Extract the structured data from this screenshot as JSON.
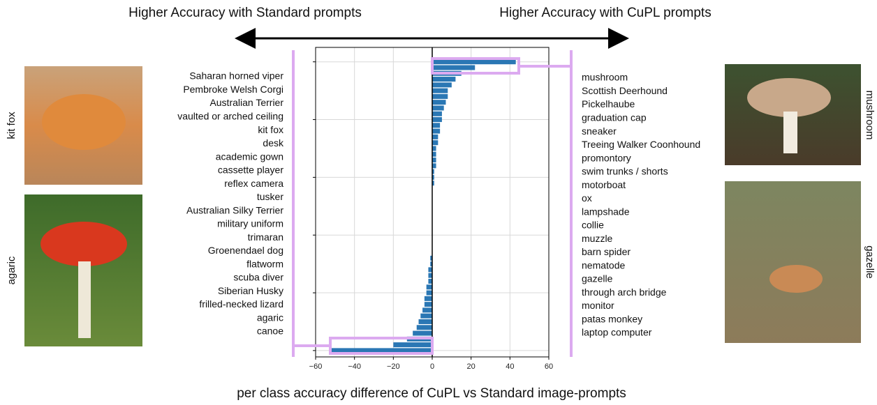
{
  "chart_data": {
    "type": "bar",
    "orientation": "horizontal",
    "title": "per class accuracy difference of CuPL vs Standard image-prompts",
    "left_header": "Higher Accuracy with Standard prompts",
    "right_header": "Higher Accuracy with CuPL prompts",
    "y": [
      0,
      20,
      40,
      60,
      80,
      100,
      120,
      140,
      160,
      180,
      200,
      220,
      240,
      260,
      280,
      300,
      320,
      340,
      360,
      380,
      400,
      420,
      440,
      460,
      480,
      500,
      520,
      540,
      560,
      580,
      600,
      620,
      640,
      660,
      680,
      700,
      720,
      740,
      760,
      780,
      800,
      820,
      840,
      860,
      880,
      900,
      920,
      940,
      960,
      980,
      1000
    ],
    "values": [
      43,
      22,
      15,
      12,
      10,
      8,
      8,
      7,
      6,
      5,
      5,
      4,
      4,
      3,
      3,
      2,
      2,
      2,
      2,
      1,
      1,
      1,
      0,
      0,
      0,
      0,
      0,
      0,
      0,
      0,
      0,
      0,
      0,
      0,
      -1,
      -1,
      -2,
      -2,
      -2,
      -3,
      -3,
      -4,
      -4,
      -5,
      -6,
      -7,
      -8,
      -10,
      -13,
      -20,
      -52
    ],
    "color": "#2a77b4",
    "xlim": [
      -60,
      60
    ],
    "xticks": [
      {
        "value": -60,
        "label": "−60"
      },
      {
        "value": -40,
        "label": "−40"
      },
      {
        "value": -20,
        "label": "−20"
      },
      0,
      20,
      40,
      60
    ],
    "ylim": [
      -50,
      1022
    ],
    "yticks": [
      0,
      200,
      400,
      600,
      800,
      1000
    ],
    "grid": true
  },
  "figure": {
    "left_classes": [
      "Saharan horned viper",
      "Pembroke Welsh Corgi",
      "Australian Terrier",
      "vaulted or arched ceiling",
      "kit fox",
      "desk",
      "academic gown",
      "cassette player",
      "reflex camera",
      "tusker",
      "Australian Silky Terrier",
      "military uniform",
      "trimaran",
      "Groenendael dog",
      "flatworm",
      "scuba diver",
      "Siberian Husky",
      "frilled-necked lizard",
      "agaric",
      "canoe"
    ],
    "right_classes": [
      "mushroom",
      "Scottish Deerhound",
      "Pickelhaube",
      "graduation cap",
      "sneaker",
      "Treeing Walker Coonhound",
      "promontory",
      "swim trunks / shorts",
      "motorboat",
      "ox",
      "lampshade",
      "collie",
      "muzzle",
      "barn spider",
      "nematode",
      "gazelle",
      "through arch bridge",
      "monitor",
      "patas monkey",
      "laptop computer"
    ],
    "left_images": [
      "kit fox",
      "agaric"
    ],
    "right_images": [
      "mushroom",
      "gazelle"
    ]
  }
}
